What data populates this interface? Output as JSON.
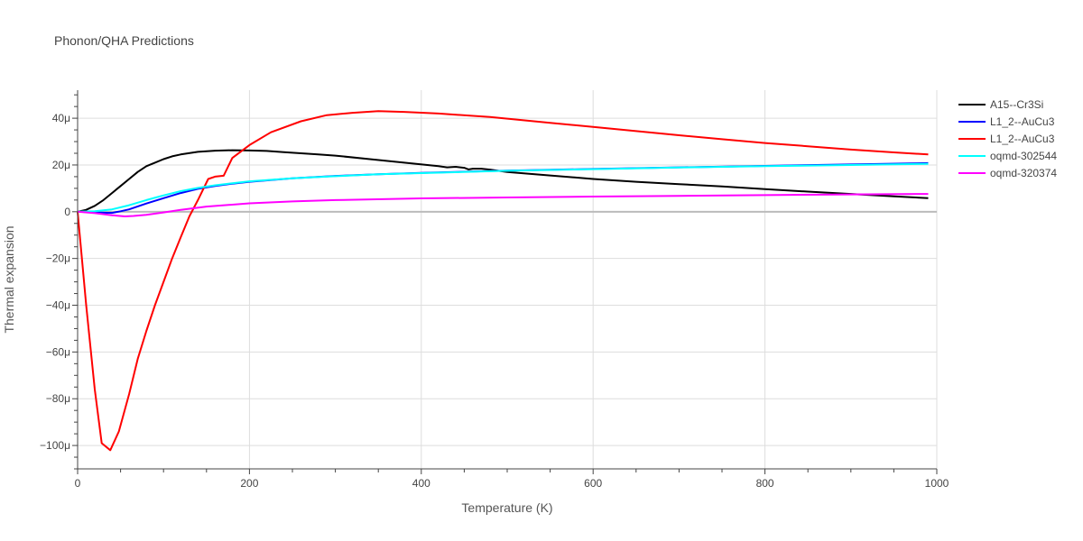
{
  "chart_data": {
    "type": "line",
    "title": "Phonon/QHA Predictions",
    "xlabel": "Temperature (K)",
    "ylabel": "Thermal expansion",
    "xlim": [
      0,
      1000
    ],
    "ylim": [
      -110,
      52
    ],
    "x_ticks": [
      0,
      200,
      400,
      600,
      800,
      1000
    ],
    "x_tick_labels": [
      "0",
      "200",
      "400",
      "600",
      "800",
      "1000"
    ],
    "y_ticks": [
      40,
      20,
      0,
      -20,
      -40,
      -60,
      -80,
      -100
    ],
    "y_tick_labels": [
      "40μ",
      "20μ",
      "0",
      "−20μ",
      "−40μ",
      "−60μ",
      "−80μ",
      "−100μ"
    ],
    "grid": true,
    "legend_position": "top-right",
    "series": [
      {
        "name": "A15--Cr3Si",
        "color": "#000000",
        "x": [
          0,
          10,
          20,
          30,
          40,
          50,
          60,
          70,
          80,
          90,
          100,
          110,
          120,
          140,
          160,
          180,
          200,
          220,
          240,
          260,
          280,
          300,
          340,
          380,
          420,
          430,
          440,
          450,
          455,
          460,
          470,
          480,
          500,
          550,
          600,
          650,
          700,
          750,
          800,
          850,
          900,
          950,
          990
        ],
        "y": [
          0,
          0.8,
          2.5,
          5,
          8,
          11,
          14,
          17,
          19.5,
          21,
          22.5,
          23.7,
          24.5,
          25.6,
          26.1,
          26.3,
          26.2,
          26,
          25.5,
          25,
          24.5,
          24,
          22.5,
          21,
          19.5,
          19,
          19.2,
          18.8,
          18.1,
          18.4,
          18.4,
          18,
          17,
          15.5,
          14,
          12.8,
          11.8,
          10.8,
          9.7,
          8.6,
          7.6,
          6.6,
          5.8
        ]
      },
      {
        "name": "L1_2--AuCu3",
        "color": "#0000ff",
        "x": [
          0,
          20,
          40,
          50,
          60,
          80,
          100,
          120,
          140,
          160,
          180,
          200,
          250,
          300,
          350,
          400,
          500,
          600,
          700,
          800,
          900,
          990
        ],
        "y": [
          0,
          -0.3,
          -0.5,
          0.2,
          1,
          3.5,
          5.8,
          8,
          9.8,
          11,
          12,
          12.8,
          14.3,
          15.3,
          16,
          16.6,
          17.6,
          18.3,
          19,
          19.6,
          20.2,
          20.8
        ]
      },
      {
        "name": "L1_2--AuCu3",
        "color": "#ff0000",
        "x": [
          0,
          10,
          20,
          28,
          38,
          48,
          60,
          70,
          80,
          90,
          100,
          110,
          120,
          130,
          140,
          152,
          160,
          170,
          180,
          200,
          225,
          260,
          290,
          320,
          350,
          380,
          420,
          480,
          550,
          600,
          650,
          700,
          750,
          800,
          850,
          900,
          950,
          990
        ],
        "y": [
          0,
          -40,
          -76,
          -99,
          -102,
          -94,
          -78,
          -63,
          -51,
          -40,
          -30,
          -20,
          -11,
          -2,
          5,
          14,
          15,
          15.4,
          23,
          28.5,
          34,
          38.7,
          41.3,
          42.3,
          43,
          42.7,
          42,
          40.5,
          38,
          36.3,
          34.5,
          32.7,
          31,
          29.4,
          28,
          26.6,
          25.4,
          24.5
        ]
      },
      {
        "name": "oqmd-302544",
        "color": "#00ffff",
        "x": [
          0,
          20,
          40,
          60,
          80,
          100,
          120,
          140,
          160,
          180,
          200,
          250,
          300,
          350,
          400,
          500,
          600,
          700,
          800,
          900,
          990
        ],
        "y": [
          0,
          0.2,
          1,
          2.8,
          5,
          7,
          8.8,
          10.2,
          11.3,
          12.2,
          13,
          14.3,
          15.2,
          16,
          16.5,
          17.5,
          18.2,
          18.9,
          19.5,
          20,
          20.5
        ]
      },
      {
        "name": "oqmd-320374",
        "color": "#ff00ff",
        "x": [
          0,
          20,
          40,
          55,
          65,
          80,
          100,
          120,
          150,
          200,
          250,
          300,
          400,
          500,
          600,
          700,
          800,
          900,
          990
        ],
        "y": [
          0,
          -0.6,
          -1.5,
          -2,
          -1.8,
          -1.3,
          -0.3,
          0.8,
          2.2,
          3.6,
          4.4,
          5,
          5.7,
          6.1,
          6.5,
          6.8,
          7.1,
          7.4,
          7.6
        ]
      }
    ]
  }
}
